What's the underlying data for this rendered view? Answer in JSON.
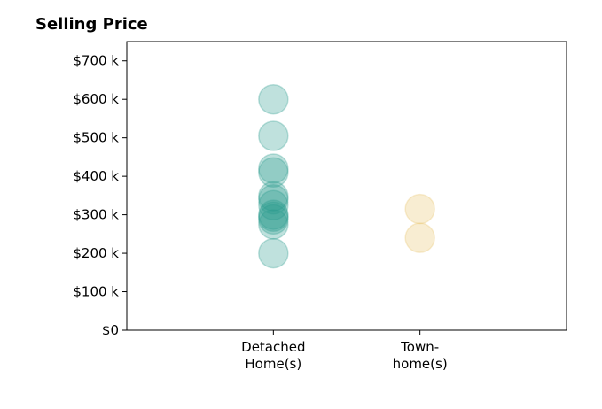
{
  "chart_data": {
    "type": "scatter",
    "title": "Selling Price",
    "categories": [
      "Detached\nHome(s)",
      "Town-\nhome(s)"
    ],
    "series": [
      {
        "category": "Detached\nHome(s)",
        "color": "#2a9d8f",
        "values": [
          600,
          505,
          420,
          410,
          348,
          340,
          325,
          300,
          295,
          288,
          275,
          200
        ]
      },
      {
        "category": "Town-\nhome(s)",
        "color": "#e9c46a",
        "values": [
          315,
          240
        ]
      }
    ],
    "y_ticks": [
      "$0",
      "$100 k",
      "$200 k",
      "$300 k",
      "$400 k",
      "$500 k",
      "$600 k",
      "$700 k"
    ],
    "y_tick_values": [
      0,
      100,
      200,
      300,
      400,
      500,
      600,
      700
    ],
    "ylim": [
      0,
      750
    ],
    "xlim": [
      -1,
      2
    ],
    "grid": false,
    "legend": "none"
  }
}
